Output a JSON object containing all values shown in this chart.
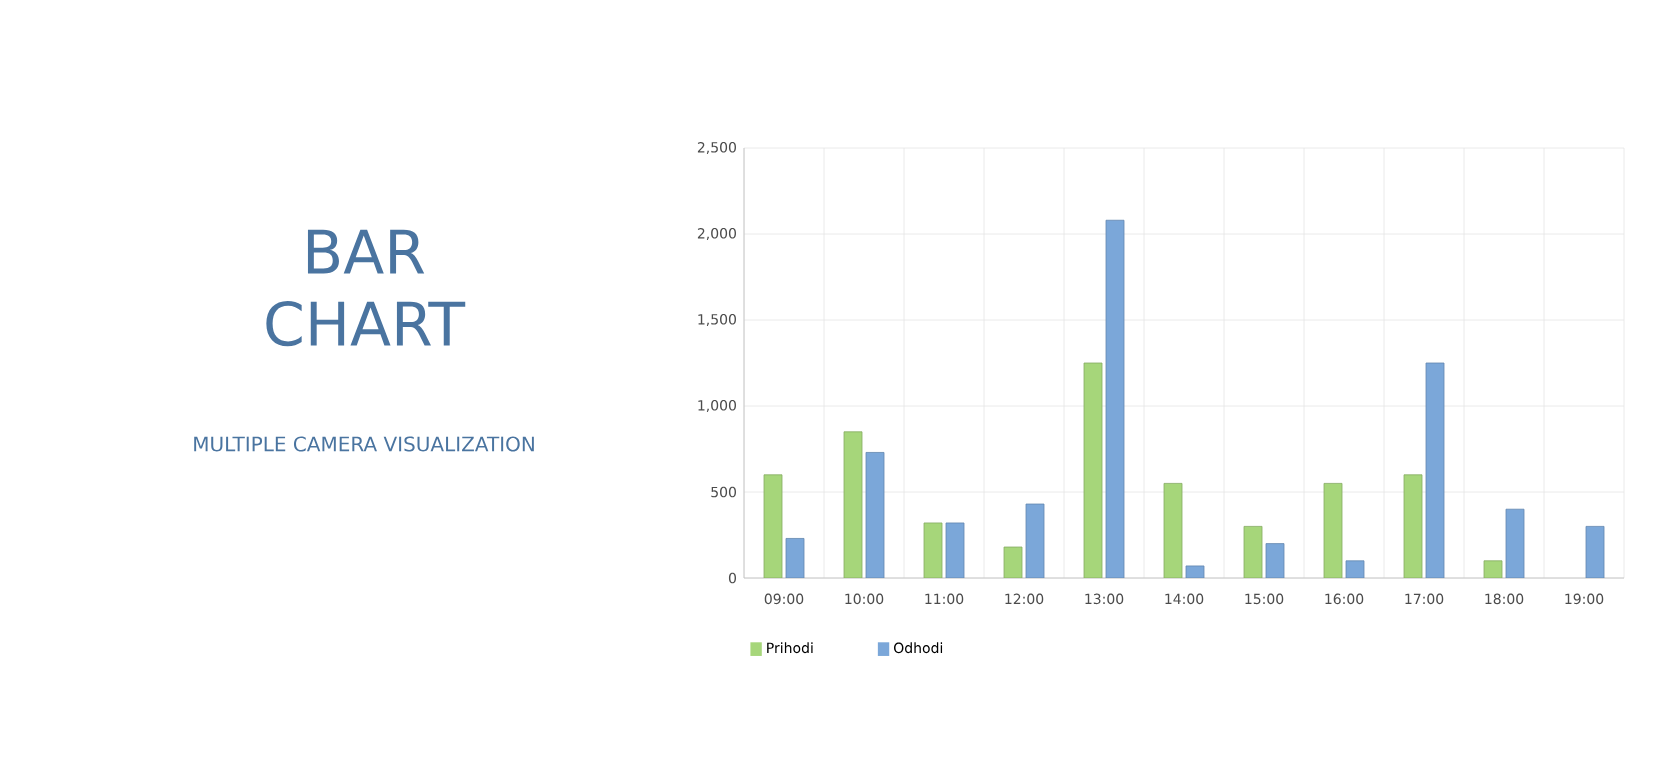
{
  "chart_data": {
    "type": "bar",
    "title": "BAR CHART",
    "subtitle": "MULTIPLE CAMERA VISUALIZATION",
    "categories": [
      "09:00",
      "10:00",
      "11:00",
      "12:00",
      "13:00",
      "14:00",
      "15:00",
      "16:00",
      "17:00",
      "18:00",
      "19:00"
    ],
    "series": [
      {
        "name": "Prihodi",
        "color": "#a6d67a",
        "values": [
          600,
          850,
          320,
          180,
          1250,
          550,
          300,
          550,
          600,
          100,
          null
        ]
      },
      {
        "name": "Odhodi",
        "color": "#7ba7d9",
        "values": [
          230,
          730,
          320,
          430,
          2080,
          70,
          200,
          100,
          1250,
          400,
          300
        ]
      }
    ],
    "ylim": [
      0,
      2500
    ],
    "yticks": [
      {
        "value": 0,
        "label": "0"
      },
      {
        "value": 500,
        "label": "500"
      },
      {
        "value": 1000,
        "label": "1,000"
      },
      {
        "value": 1500,
        "label": "1,500"
      },
      {
        "value": 2000,
        "label": "2,000"
      },
      {
        "value": 2500,
        "label": "2,500"
      }
    ],
    "grid": true,
    "legend": "bottom left"
  }
}
